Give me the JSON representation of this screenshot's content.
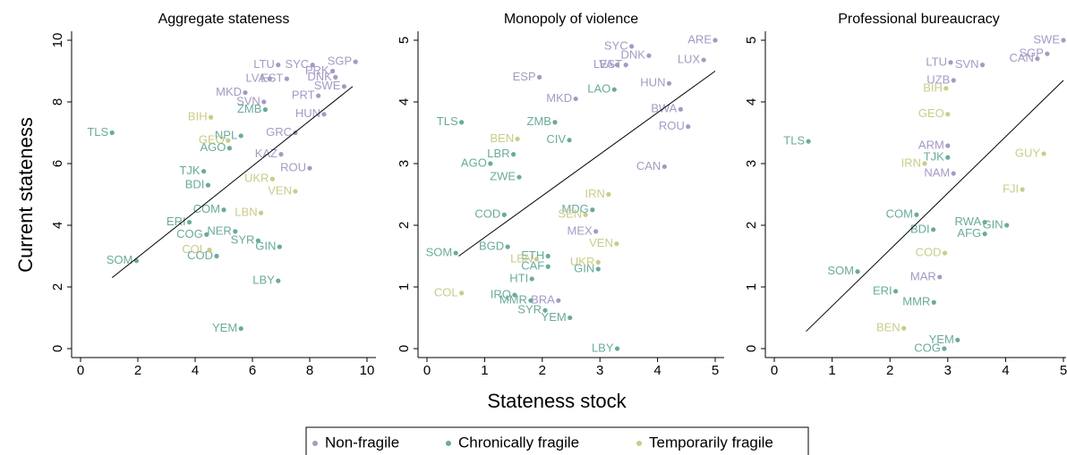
{
  "y_label": "Current stateness",
  "x_label": "Stateness stock",
  "chart_data": [
    {
      "type": "scatter",
      "title": "Aggregate stateness",
      "xlim": [
        0,
        10
      ],
      "ylim": [
        0,
        10
      ],
      "xticks": [
        0,
        2,
        4,
        6,
        8,
        10
      ],
      "yticks": [
        0,
        2,
        4,
        6,
        8,
        10
      ],
      "fit_line": {
        "x": [
          1.1,
          9.5
        ],
        "y": [
          2.3,
          8.5
        ]
      },
      "series": [
        {
          "name": "Non-fragile",
          "color": "#a59ac4",
          "x": [
            6.9,
            9.6,
            8.1,
            9.2,
            6.6,
            7.2,
            8.9,
            5.75,
            6.4,
            8.5,
            8.0,
            7.5,
            8.3,
            7.0,
            8.8
          ],
          "values": [
            9.2,
            9.3,
            9.2,
            8.5,
            8.75,
            8.75,
            8.8,
            8.3,
            8.0,
            7.6,
            5.85,
            7.0,
            8.2,
            6.3,
            9.0
          ],
          "labels": [
            "LTU",
            "SGP",
            "SYC",
            "SWE",
            "LVA",
            "EST",
            "DNK",
            "MKD",
            "SVN",
            "HUN",
            "ROU",
            "GRC",
            "PRT",
            "KAZ",
            "PRK"
          ]
        },
        {
          "name": "Chronically fragile",
          "color": "#6aab9c",
          "x": [
            1.1,
            1.95,
            5.6,
            6.9,
            6.95,
            6.2,
            4.75,
            3.8,
            4.45,
            4.3,
            5.4,
            4.4,
            5.0,
            6.45,
            5.2,
            5.6
          ],
          "values": [
            7.0,
            2.85,
            0.65,
            2.2,
            3.3,
            3.5,
            3.0,
            4.1,
            5.3,
            5.75,
            3.8,
            3.7,
            4.5,
            7.75,
            6.5,
            6.9
          ],
          "labels": [
            "TLS",
            "SOM",
            "YEM",
            "LBY",
            "GIN",
            "SYR",
            "COD",
            "ERI",
            "BDI",
            "TJK",
            "NER",
            "COG",
            "COM",
            "ZMB",
            "AGO",
            "NPL"
          ]
        },
        {
          "name": "Temporarily fragile",
          "color": "#c9cc8a",
          "x": [
            4.55,
            5.15,
            4.5,
            7.5,
            6.3,
            6.7
          ],
          "values": [
            7.5,
            6.75,
            3.2,
            5.1,
            4.4,
            5.5
          ],
          "labels": [
            "BIH",
            "GEO",
            "COL",
            "VEN",
            "LBN",
            "UKR"
          ]
        }
      ]
    },
    {
      "type": "scatter",
      "title": "Monopoly of violence",
      "xlim": [
        0,
        5
      ],
      "ylim": [
        0,
        5
      ],
      "xticks": [
        0,
        1,
        2,
        3,
        4,
        5
      ],
      "yticks": [
        0,
        1,
        2,
        3,
        4,
        5
      ],
      "fit_line": {
        "x": [
          0.55,
          5
        ],
        "y": [
          1.5,
          4.5
        ]
      },
      "series": [
        {
          "name": "Non-fragile",
          "color": "#a59ac4",
          "x": [
            5.0,
            4.8,
            3.55,
            1.95,
            2.58,
            4.4,
            4.53,
            4.12,
            2.93,
            2.28,
            3.85,
            3.45,
            3.3,
            4.2
          ],
          "values": [
            5.0,
            4.68,
            4.9,
            4.4,
            4.05,
            3.88,
            3.6,
            2.95,
            1.9,
            0.78,
            4.75,
            4.6,
            4.6,
            4.3
          ],
          "labels": [
            "ARE",
            "LUX",
            "SYC",
            "ESP",
            "MKD",
            "BWA",
            "ROU",
            "CAN",
            "MEX",
            "BRA",
            "DNK",
            "EST",
            "LVA",
            "HUN"
          ]
        },
        {
          "name": "Chronically fragile",
          "color": "#6aab9c",
          "x": [
            0.6,
            0.5,
            1.4,
            3.25,
            2.22,
            2.47,
            1.1,
            2.1,
            2.1,
            1.82,
            2.97,
            2.05,
            2.48,
            3.3,
            1.52,
            1.34,
            1.6,
            1.5,
            2.87,
            1.8
          ],
          "values": [
            3.67,
            1.55,
            1.65,
            4.2,
            3.67,
            3.38,
            3.0,
            1.5,
            1.33,
            1.13,
            1.29,
            0.62,
            0.5,
            0.0,
            0.87,
            2.17,
            2.78,
            3.15,
            2.25,
            0.78
          ],
          "labels": [
            "TLS",
            "SOM",
            "BGD",
            "LAO",
            "ZMB",
            "CIV",
            "AGO",
            "ETH",
            "CAF",
            "HTI",
            "GIN",
            "SYR",
            "YEM",
            "LBY",
            "IRQ",
            "COD",
            "ZWE",
            "LBR",
            "MDG",
            "MMR"
          ]
        },
        {
          "name": "Temporarily fragile",
          "color": "#c9cc8a",
          "x": [
            0.6,
            3.29,
            2.97,
            2.75,
            3.15,
            1.57,
            1.9
          ],
          "values": [
            0.9,
            1.7,
            1.4,
            2.17,
            2.5,
            3.4,
            1.45
          ],
          "labels": [
            "COL",
            "VEN",
            "UKR",
            "SEN",
            "IRN",
            "BEN",
            "LBN"
          ]
        }
      ]
    },
    {
      "type": "scatter",
      "title": "Professional bureaucracy",
      "xlim": [
        0,
        5
      ],
      "ylim": [
        0,
        5
      ],
      "xticks": [
        0,
        1,
        2,
        3,
        4,
        5
      ],
      "yticks": [
        0,
        1,
        2,
        3,
        4,
        5
      ],
      "fit_line": {
        "x": [
          0.55,
          5
        ],
        "y": [
          0.28,
          4.35
        ]
      },
      "series": [
        {
          "name": "Non-fragile",
          "color": "#a59ac4",
          "x": [
            5.0,
            4.72,
            3.05,
            4.55,
            3.0,
            3.1,
            2.86,
            3.6,
            3.1
          ],
          "values": [
            5.0,
            4.78,
            4.64,
            4.7,
            3.29,
            2.84,
            1.16,
            4.6,
            4.35
          ],
          "labels": [
            "SWE",
            "SGP",
            "LTU",
            "CAN",
            "ARM",
            "NAM",
            "MAR",
            "SVN",
            "UZB"
          ]
        },
        {
          "name": "Chronically fragile",
          "color": "#6aab9c",
          "x": [
            0.59,
            1.44,
            2.1,
            2.46,
            2.75,
            2.76,
            3.17,
            2.94,
            3.64,
            3.64,
            4.02,
            3.0
          ],
          "values": [
            3.36,
            1.25,
            0.93,
            2.17,
            1.93,
            0.75,
            0.14,
            0.0,
            1.86,
            2.05,
            2.0,
            3.1
          ],
          "labels": [
            "TLS",
            "SOM",
            "ERI",
            "COM",
            "BDI",
            "MMR",
            "YEM",
            "COG",
            "AFG",
            "RWA",
            "GIN",
            "TJK"
          ]
        },
        {
          "name": "Temporarily fragile",
          "color": "#c9cc8a",
          "x": [
            2.24,
            2.97,
            4.66,
            4.29,
            3.0,
            2.95,
            2.6
          ],
          "values": [
            0.33,
            4.22,
            3.16,
            2.58,
            3.8,
            1.55,
            3.0
          ],
          "labels": [
            "BEN",
            "BIH",
            "GUY",
            "FJI",
            "GEO",
            "COD",
            "IRN"
          ]
        }
      ]
    }
  ]
}
